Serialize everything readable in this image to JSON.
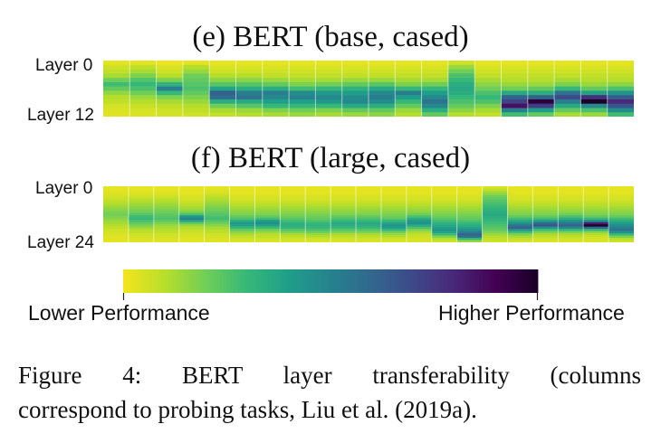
{
  "panels": [
    {
      "title": "(e) BERT (base, cased)",
      "top_label": "Layer 0",
      "bottom_label": "Layer 12",
      "layers": 13,
      "tasks": [
        [
          0.02,
          0.06,
          0.08,
          0.12,
          0.2,
          0.28,
          0.22,
          0.15,
          0.1,
          0.08,
          0.05,
          0.04,
          0.03
        ],
        [
          0.02,
          0.08,
          0.12,
          0.18,
          0.25,
          0.3,
          0.26,
          0.2,
          0.14,
          0.1,
          0.07,
          0.05,
          0.04
        ],
        [
          0.01,
          0.04,
          0.06,
          0.1,
          0.18,
          0.32,
          0.52,
          0.3,
          0.18,
          0.12,
          0.08,
          0.06,
          0.05
        ],
        [
          0.02,
          0.1,
          0.14,
          0.2,
          0.22,
          0.24,
          0.26,
          0.22,
          0.18,
          0.14,
          0.1,
          0.08,
          0.06
        ],
        [
          0.02,
          0.04,
          0.06,
          0.1,
          0.16,
          0.24,
          0.38,
          0.62,
          0.58,
          0.34,
          0.2,
          0.12,
          0.08
        ],
        [
          0.02,
          0.04,
          0.06,
          0.1,
          0.16,
          0.24,
          0.34,
          0.52,
          0.56,
          0.36,
          0.24,
          0.14,
          0.1
        ],
        [
          0.02,
          0.04,
          0.06,
          0.08,
          0.14,
          0.22,
          0.34,
          0.52,
          0.48,
          0.4,
          0.3,
          0.18,
          0.12
        ],
        [
          0.02,
          0.04,
          0.06,
          0.08,
          0.12,
          0.18,
          0.28,
          0.46,
          0.5,
          0.4,
          0.3,
          0.2,
          0.14
        ],
        [
          0.02,
          0.04,
          0.06,
          0.08,
          0.12,
          0.2,
          0.3,
          0.42,
          0.48,
          0.42,
          0.3,
          0.18,
          0.12
        ],
        [
          0.02,
          0.04,
          0.06,
          0.08,
          0.14,
          0.22,
          0.32,
          0.4,
          0.46,
          0.48,
          0.36,
          0.22,
          0.14
        ],
        [
          0.02,
          0.04,
          0.06,
          0.08,
          0.14,
          0.24,
          0.36,
          0.48,
          0.52,
          0.46,
          0.34,
          0.22,
          0.16
        ],
        [
          0.02,
          0.04,
          0.06,
          0.08,
          0.12,
          0.18,
          0.3,
          0.52,
          0.4,
          0.3,
          0.22,
          0.14,
          0.1
        ],
        [
          0.02,
          0.04,
          0.06,
          0.08,
          0.12,
          0.2,
          0.3,
          0.4,
          0.48,
          0.56,
          0.48,
          0.34,
          0.22
        ],
        [
          0.06,
          0.14,
          0.2,
          0.26,
          0.3,
          0.34,
          0.36,
          0.34,
          0.3,
          0.26,
          0.22,
          0.16,
          0.1
        ],
        [
          0.02,
          0.04,
          0.06,
          0.08,
          0.12,
          0.16,
          0.2,
          0.26,
          0.3,
          0.26,
          0.18,
          0.12,
          0.08
        ],
        [
          0.02,
          0.04,
          0.06,
          0.08,
          0.1,
          0.14,
          0.2,
          0.36,
          0.62,
          0.72,
          0.86,
          0.52,
          0.28
        ],
        [
          0.02,
          0.04,
          0.06,
          0.08,
          0.1,
          0.14,
          0.22,
          0.34,
          0.62,
          0.96,
          0.74,
          0.4,
          0.22
        ],
        [
          0.02,
          0.04,
          0.06,
          0.08,
          0.12,
          0.18,
          0.3,
          0.56,
          0.7,
          0.52,
          0.36,
          0.22,
          0.12
        ],
        [
          0.02,
          0.04,
          0.06,
          0.08,
          0.1,
          0.14,
          0.22,
          0.38,
          0.78,
          1.0,
          0.48,
          0.26,
          0.14
        ],
        [
          0.02,
          0.04,
          0.06,
          0.08,
          0.1,
          0.16,
          0.26,
          0.44,
          0.64,
          0.8,
          0.66,
          0.46,
          0.28
        ]
      ]
    },
    {
      "title": "(f) BERT (large, cased)",
      "top_label": "Layer 0",
      "bottom_label": "Layer 24",
      "layers": 25,
      "tasks": [
        [
          0.02,
          0.02,
          0.03,
          0.04,
          0.05,
          0.06,
          0.08,
          0.1,
          0.12,
          0.14,
          0.16,
          0.18,
          0.2,
          0.18,
          0.16,
          0.14,
          0.12,
          0.1,
          0.08,
          0.06,
          0.05,
          0.04,
          0.03,
          0.03,
          0.02
        ],
        [
          0.02,
          0.02,
          0.03,
          0.04,
          0.06,
          0.08,
          0.1,
          0.12,
          0.14,
          0.16,
          0.18,
          0.2,
          0.24,
          0.28,
          0.3,
          0.26,
          0.22,
          0.18,
          0.14,
          0.1,
          0.08,
          0.06,
          0.05,
          0.04,
          0.03
        ],
        [
          0.02,
          0.02,
          0.03,
          0.04,
          0.06,
          0.08,
          0.1,
          0.12,
          0.14,
          0.16,
          0.18,
          0.2,
          0.22,
          0.24,
          0.26,
          0.22,
          0.18,
          0.14,
          0.12,
          0.1,
          0.08,
          0.06,
          0.05,
          0.04,
          0.03
        ],
        [
          0.02,
          0.02,
          0.02,
          0.03,
          0.04,
          0.05,
          0.06,
          0.08,
          0.1,
          0.12,
          0.14,
          0.18,
          0.26,
          0.42,
          0.5,
          0.36,
          0.22,
          0.14,
          0.1,
          0.08,
          0.06,
          0.05,
          0.04,
          0.03,
          0.02
        ],
        [
          0.02,
          0.03,
          0.04,
          0.06,
          0.08,
          0.1,
          0.12,
          0.14,
          0.16,
          0.18,
          0.2,
          0.22,
          0.24,
          0.26,
          0.28,
          0.24,
          0.2,
          0.16,
          0.12,
          0.1,
          0.08,
          0.06,
          0.05,
          0.04,
          0.03
        ],
        [
          0.02,
          0.02,
          0.02,
          0.03,
          0.04,
          0.05,
          0.06,
          0.08,
          0.1,
          0.12,
          0.14,
          0.16,
          0.18,
          0.22,
          0.26,
          0.34,
          0.42,
          0.38,
          0.3,
          0.22,
          0.16,
          0.12,
          0.08,
          0.06,
          0.04
        ],
        [
          0.02,
          0.02,
          0.02,
          0.03,
          0.04,
          0.05,
          0.06,
          0.08,
          0.1,
          0.12,
          0.14,
          0.16,
          0.18,
          0.22,
          0.28,
          0.4,
          0.46,
          0.38,
          0.28,
          0.2,
          0.14,
          0.1,
          0.08,
          0.06,
          0.04
        ],
        [
          0.02,
          0.02,
          0.02,
          0.03,
          0.04,
          0.05,
          0.06,
          0.08,
          0.1,
          0.12,
          0.14,
          0.16,
          0.18,
          0.2,
          0.24,
          0.28,
          0.32,
          0.34,
          0.3,
          0.24,
          0.18,
          0.12,
          0.08,
          0.06,
          0.04
        ],
        [
          0.02,
          0.02,
          0.02,
          0.03,
          0.04,
          0.05,
          0.06,
          0.08,
          0.1,
          0.12,
          0.14,
          0.16,
          0.18,
          0.2,
          0.22,
          0.26,
          0.3,
          0.32,
          0.3,
          0.26,
          0.2,
          0.14,
          0.1,
          0.06,
          0.04
        ],
        [
          0.02,
          0.02,
          0.02,
          0.03,
          0.04,
          0.05,
          0.06,
          0.08,
          0.1,
          0.12,
          0.14,
          0.16,
          0.18,
          0.22,
          0.26,
          0.3,
          0.36,
          0.34,
          0.3,
          0.24,
          0.18,
          0.12,
          0.08,
          0.06,
          0.04
        ],
        [
          0.02,
          0.02,
          0.02,
          0.03,
          0.04,
          0.05,
          0.06,
          0.08,
          0.1,
          0.12,
          0.14,
          0.16,
          0.18,
          0.22,
          0.26,
          0.3,
          0.36,
          0.34,
          0.3,
          0.24,
          0.18,
          0.12,
          0.08,
          0.06,
          0.04
        ],
        [
          0.02,
          0.02,
          0.02,
          0.03,
          0.04,
          0.05,
          0.06,
          0.08,
          0.1,
          0.12,
          0.14,
          0.16,
          0.18,
          0.2,
          0.24,
          0.3,
          0.38,
          0.44,
          0.4,
          0.3,
          0.2,
          0.14,
          0.1,
          0.06,
          0.04
        ],
        [
          0.02,
          0.02,
          0.02,
          0.03,
          0.04,
          0.05,
          0.06,
          0.08,
          0.1,
          0.12,
          0.14,
          0.16,
          0.2,
          0.26,
          0.34,
          0.42,
          0.44,
          0.36,
          0.26,
          0.18,
          0.12,
          0.08,
          0.06,
          0.05,
          0.04
        ],
        [
          0.02,
          0.02,
          0.02,
          0.03,
          0.04,
          0.05,
          0.06,
          0.08,
          0.1,
          0.12,
          0.14,
          0.16,
          0.18,
          0.2,
          0.24,
          0.28,
          0.32,
          0.36,
          0.4,
          0.44,
          0.38,
          0.28,
          0.18,
          0.1,
          0.06
        ],
        [
          0.02,
          0.02,
          0.02,
          0.03,
          0.04,
          0.05,
          0.06,
          0.08,
          0.1,
          0.12,
          0.14,
          0.16,
          0.18,
          0.2,
          0.22,
          0.26,
          0.3,
          0.34,
          0.38,
          0.44,
          0.52,
          0.62,
          0.56,
          0.3,
          0.14
        ],
        [
          0.04,
          0.08,
          0.12,
          0.16,
          0.2,
          0.22,
          0.24,
          0.26,
          0.28,
          0.3,
          0.32,
          0.34,
          0.36,
          0.34,
          0.32,
          0.3,
          0.28,
          0.26,
          0.24,
          0.22,
          0.18,
          0.14,
          0.1,
          0.08,
          0.06
        ],
        [
          0.02,
          0.02,
          0.02,
          0.03,
          0.04,
          0.05,
          0.06,
          0.08,
          0.1,
          0.12,
          0.14,
          0.16,
          0.18,
          0.22,
          0.28,
          0.36,
          0.44,
          0.56,
          0.62,
          0.44,
          0.28,
          0.18,
          0.12,
          0.08,
          0.05
        ],
        [
          0.02,
          0.02,
          0.02,
          0.03,
          0.04,
          0.05,
          0.06,
          0.08,
          0.1,
          0.12,
          0.14,
          0.16,
          0.18,
          0.22,
          0.28,
          0.4,
          0.58,
          0.66,
          0.44,
          0.28,
          0.18,
          0.12,
          0.08,
          0.06,
          0.04
        ],
        [
          0.02,
          0.02,
          0.02,
          0.03,
          0.04,
          0.05,
          0.06,
          0.08,
          0.1,
          0.12,
          0.14,
          0.16,
          0.2,
          0.26,
          0.34,
          0.44,
          0.54,
          0.62,
          0.48,
          0.3,
          0.18,
          0.12,
          0.08,
          0.06,
          0.04
        ],
        [
          0.02,
          0.02,
          0.02,
          0.03,
          0.04,
          0.05,
          0.06,
          0.08,
          0.1,
          0.12,
          0.14,
          0.16,
          0.18,
          0.22,
          0.3,
          0.46,
          0.82,
          1.0,
          0.6,
          0.3,
          0.16,
          0.1,
          0.06,
          0.05,
          0.04
        ],
        [
          0.02,
          0.02,
          0.02,
          0.03,
          0.04,
          0.05,
          0.06,
          0.08,
          0.1,
          0.12,
          0.14,
          0.16,
          0.18,
          0.22,
          0.28,
          0.34,
          0.4,
          0.46,
          0.52,
          0.56,
          0.44,
          0.3,
          0.18,
          0.1,
          0.06
        ]
      ]
    }
  ],
  "colorbar": {
    "low_label": "Lower Performance",
    "high_label": "Higher Performance"
  },
  "caption": {
    "line1": "Figure 4: BERT layer transferability (columns",
    "line2": "correspond to probing tasks, Liu et al. (2019a)."
  },
  "colors": [
    "#f1e51d",
    "#b5de2b",
    "#6ece58",
    "#35b779",
    "#1f9e89",
    "#26828e",
    "#31688e",
    "#3e4989",
    "#482878",
    "#440154",
    "#1a0028"
  ]
}
